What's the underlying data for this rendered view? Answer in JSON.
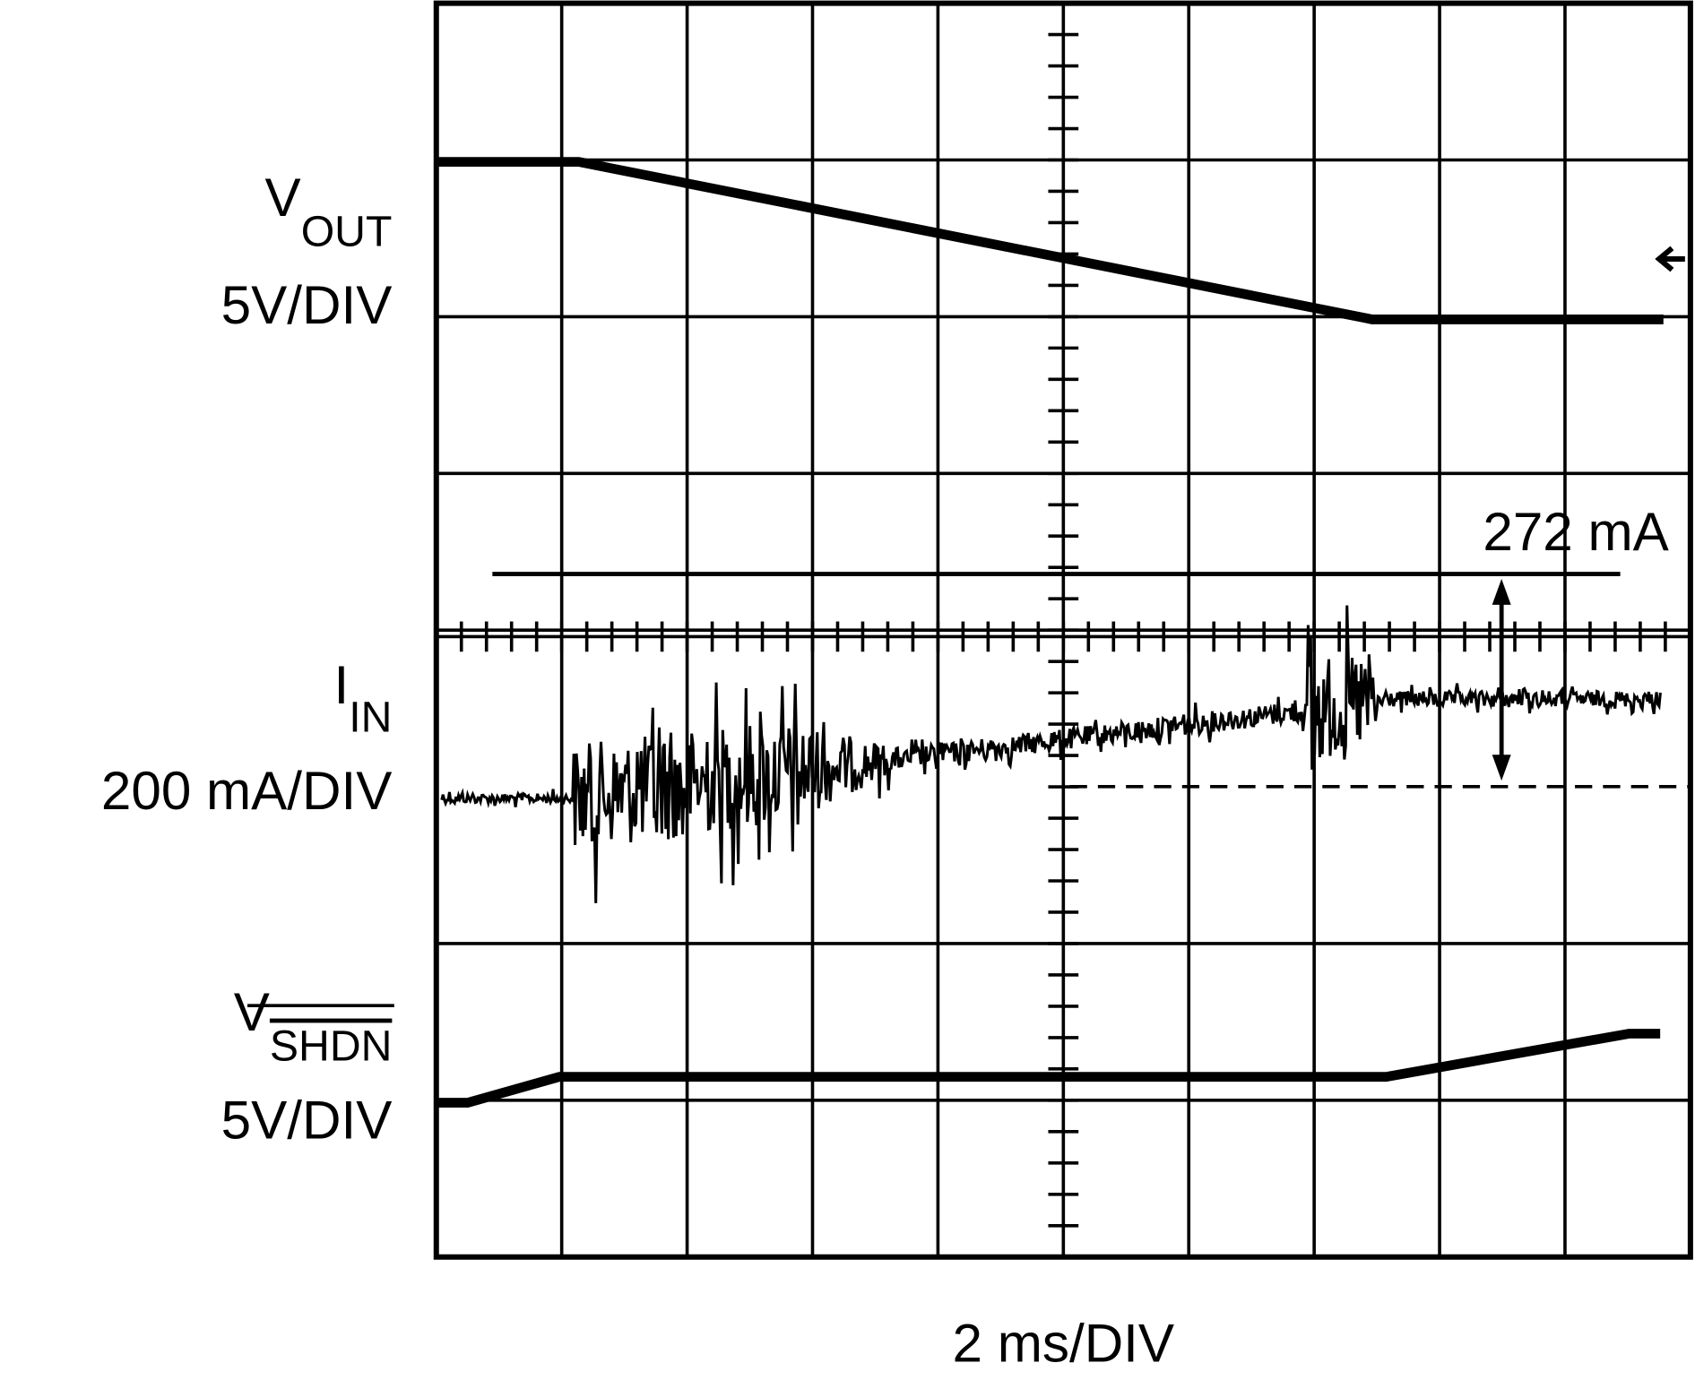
{
  "channels": [
    {
      "symbol": "V",
      "subscript": "OUT",
      "scale": "5V/DIV"
    },
    {
      "symbol": "I",
      "subscript": "IN",
      "scale": "200 mA/DIV"
    },
    {
      "symbol": "V",
      "subscript": "SHDN",
      "scale": "5V/DIV"
    }
  ],
  "annotation": "272 mA",
  "time_scale": "2 ms/DIV"
}
